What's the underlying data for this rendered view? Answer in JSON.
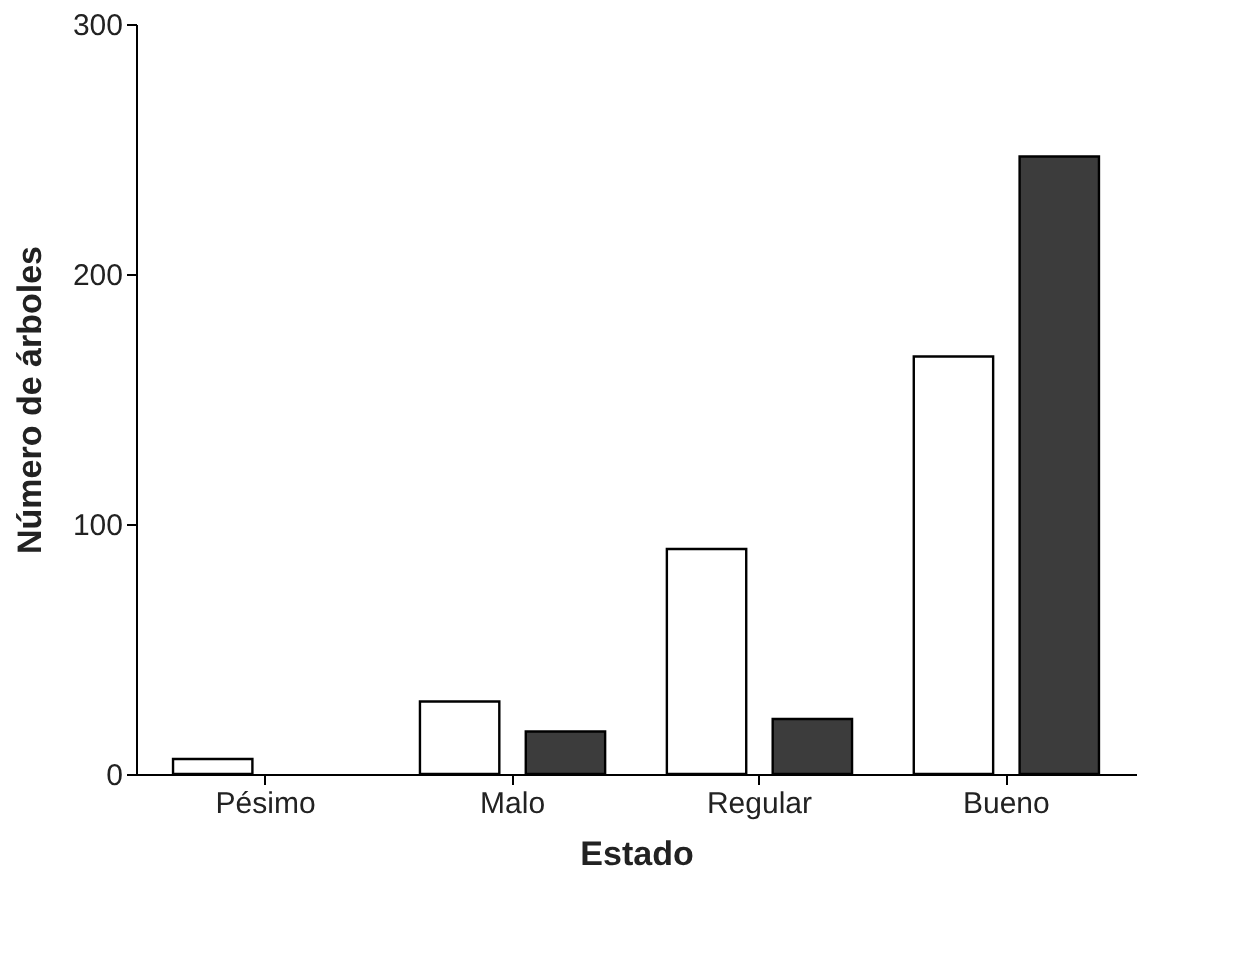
{
  "chart_data": {
    "type": "bar",
    "xlabel": "Estado",
    "ylabel": "Número de árboles",
    "categories": [
      "Pésimo",
      "Malo",
      "Regular",
      "Bueno"
    ],
    "series": [
      {
        "color": "#ffffff",
        "values": [
          6,
          29,
          90,
          167
        ]
      },
      {
        "color": "#3c3c3c",
        "values": [
          null,
          17,
          22,
          247
        ]
      }
    ],
    "ylim": [
      0,
      300
    ],
    "yticks": [
      0,
      100,
      200,
      300
    ],
    "grid": false,
    "legend": false
  }
}
